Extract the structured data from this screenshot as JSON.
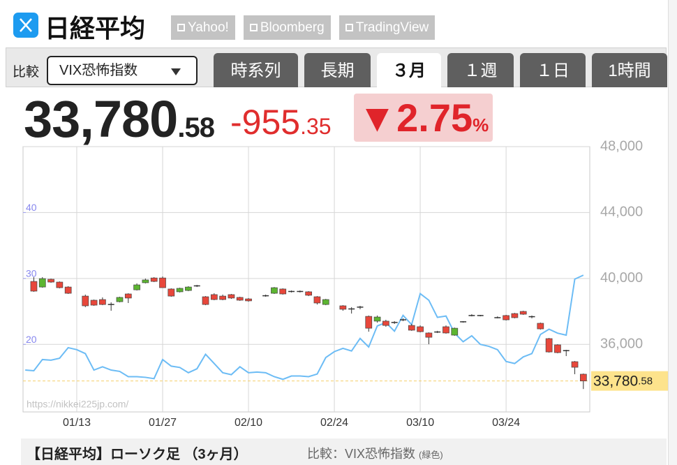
{
  "header": {
    "title": "日経平均",
    "links": [
      "Yahoo!",
      "Bloomberg",
      "TradingView"
    ]
  },
  "toolbar": {
    "compare_label": "比較",
    "compare_select": "VIX恐怖指数",
    "tabs": [
      "時系列",
      "長期",
      "３月",
      "１週",
      "１日",
      "1時間"
    ],
    "active_tab": 2
  },
  "quote": {
    "price_int": "33,780",
    "price_dec": ".58",
    "change_int": "-955",
    "change_dec": ".35",
    "pct": "▼2.75",
    "pct_unit": "%"
  },
  "chart_data": {
    "type": "candlestick",
    "categories": [
      null,
      null,
      null,
      null,
      null,
      null,
      "01/13",
      null,
      null,
      null,
      null,
      null,
      null,
      null,
      null,
      null,
      "01/27",
      null,
      null,
      null,
      null,
      null,
      null,
      null,
      null,
      null,
      "02/10",
      null,
      null,
      null,
      null,
      null,
      null,
      null,
      null,
      null,
      "02/24",
      null,
      null,
      null,
      null,
      null,
      null,
      null,
      null,
      null,
      "03/10",
      null,
      null,
      null,
      null,
      null,
      null,
      null,
      null,
      null,
      "03/24",
      null,
      null,
      null,
      null,
      null,
      null,
      null,
      null,
      null
    ],
    "open": [
      null,
      39820,
      39480,
      39950,
      39780,
      39480,
      null,
      38930,
      38680,
      38720,
      38420,
      38590,
      39060,
      39310,
      39740,
      40030,
      40030,
      39360,
      39190,
      39270,
      39550,
      38890,
      39020,
      38930,
      39020,
      38850,
      38760,
      null,
      38950,
      39100,
      39360,
      39210,
      39190,
      39190,
      38890,
      38420,
      null,
      38340,
      38150,
      38240,
      37700,
      37410,
      37410,
      37330,
      37490,
      37150,
      37070,
      36690,
      36750,
      37070,
      36560,
      37350,
      37750,
      37730,
      null,
      37610,
      37750,
      37870,
      38000,
      37680,
      37280,
      36350,
      35970,
      35620,
      34950,
      34190
    ],
    "high": [
      null,
      40080,
      40080,
      39990,
      39820,
      39530,
      null,
      39020,
      38720,
      38850,
      38550,
      38890,
      39100,
      39700,
      39990,
      40080,
      40120,
      39400,
      39440,
      39530,
      39610,
      38930,
      39100,
      39020,
      39060,
      38890,
      38810,
      null,
      39020,
      39480,
      39400,
      39270,
      39270,
      39230,
      38930,
      38760,
      null,
      38380,
      38260,
      38340,
      37750,
      37750,
      37490,
      37410,
      37580,
      37240,
      37150,
      36730,
      36820,
      37150,
      37020,
      37410,
      37830,
      37790,
      null,
      37700,
      37790,
      37910,
      38040,
      37750,
      37320,
      36390,
      36010,
      35670,
      34990,
      34230
    ],
    "low": [
      null,
      39190,
      39440,
      39740,
      39400,
      39060,
      null,
      38260,
      38340,
      38380,
      38040,
      38550,
      38510,
      39270,
      39700,
      39780,
      39440,
      38890,
      39150,
      39230,
      39480,
      38380,
      38680,
      38680,
      38760,
      38640,
      38590,
      null,
      38890,
      39060,
      39020,
      39150,
      39150,
      38930,
      38420,
      38380,
      null,
      38040,
      37870,
      38130,
      36770,
      37320,
      37070,
      37240,
      37410,
      36820,
      36730,
      36010,
      36690,
      36650,
      36520,
      37320,
      37700,
      37700,
      null,
      37580,
      37450,
      37580,
      37790,
      37580,
      36900,
      35500,
      35460,
      35290,
      34190,
      33290
    ],
    "close": [
      null,
      39230,
      39990,
      39780,
      39440,
      39100,
      null,
      38340,
      38380,
      38420,
      38380,
      38850,
      38810,
      39610,
      39910,
      39820,
      39440,
      38930,
      39400,
      39480,
      39530,
      38420,
      38720,
      38720,
      38810,
      38680,
      38640,
      null,
      38930,
      39440,
      39060,
      39190,
      39210,
      38980,
      38510,
      38720,
      null,
      38130,
      38130,
      38260,
      36980,
      37660,
      37150,
      37320,
      37470,
      36860,
      36770,
      36430,
      36730,
      36690,
      36980,
      37370,
      37730,
      37750,
      null,
      37620,
      37490,
      37620,
      37830,
      37660,
      36940,
      35540,
      35500,
      35590,
      34610,
      33780.58
    ],
    "up_color": "#5cb531",
    "down_color": "#e8473b",
    "series": [
      {
        "color": "#6cbcf5",
        "axis": "y2",
        "values": [
          16.1,
          16.0,
          17.7,
          17.6,
          17.9,
          19.5,
          19.2,
          18.6,
          16.1,
          16.6,
          16.1,
          15.9,
          15.1,
          15.1,
          15.0,
          14.8,
          17.7,
          16.7,
          16.5,
          15.7,
          16.3,
          18.5,
          17.1,
          15.7,
          15.4,
          16.6,
          15.7,
          15.8,
          15.7,
          15.1,
          14.7,
          15.2,
          15.2,
          15.1,
          15.5,
          18.0,
          18.9,
          19.4,
          19.0,
          20.9,
          19.6,
          22.8,
          23.3,
          22.0,
          24.4,
          23.0,
          27.7,
          26.7,
          24.1,
          24.3,
          21.7,
          20.4,
          21.3,
          20.0,
          19.7,
          19.2,
          17.4,
          17.1,
          18.1,
          18.6,
          21.5,
          22.3,
          21.7,
          21.4,
          29.9,
          30.5
        ]
      }
    ],
    "ylim": [
      31900,
      48000
    ],
    "yticks": [
      {
        "value": 36000,
        "label": "36,000"
      },
      {
        "value": 40000,
        "label": "40,000"
      },
      {
        "value": 44000,
        "label": "44,000"
      },
      {
        "value": 48000,
        "label": "48,000"
      }
    ],
    "y2lim": [
      9.75,
      50
    ],
    "y2ticks": [
      20,
      30,
      40
    ],
    "grid": true,
    "last": {
      "value": 33780.58,
      "label": "33,780",
      "label_dec": ".58"
    },
    "watermark": "https://nikkei225jp.com/"
  },
  "caption": {
    "title": "【日経平均】ローソク足 （3ヶ月）",
    "compare": "比較：VIX恐怖指数",
    "note": "(緑色)"
  }
}
